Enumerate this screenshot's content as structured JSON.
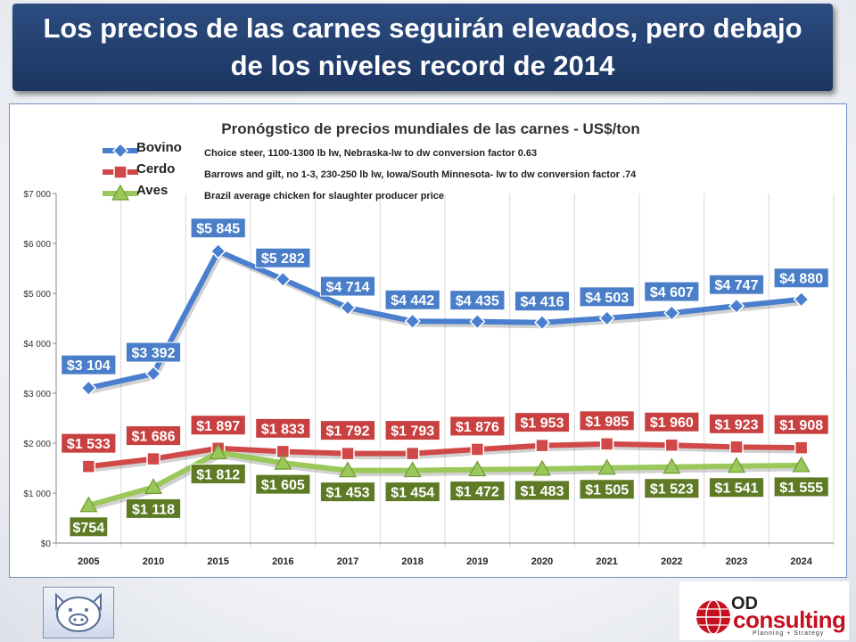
{
  "slide_title": {
    "line1": "Los precios de las carnes seguirán elevados, pero debajo",
    "line2": "de los niveles record de 2014"
  },
  "chart_data": {
    "type": "line",
    "title": "Pronógstico de precios  mundiales de las carnes - US$/ton",
    "categories": [
      "2005",
      "2010",
      "2015",
      "2016",
      "2017",
      "2018",
      "2019",
      "2020",
      "2021",
      "2022",
      "2023",
      "2024"
    ],
    "ylim": [
      0,
      7000
    ],
    "yticks": [
      0,
      1000,
      2000,
      3000,
      4000,
      5000,
      6000,
      7000
    ],
    "ytick_labels": [
      "$0",
      "$1 000",
      "$2 000",
      "$3 000",
      "$4 000",
      "$5 000",
      "$6 000",
      "$7 000"
    ],
    "grid": "vertical",
    "legend_position": "top-left",
    "series": [
      {
        "name": "Bovino",
        "description": "Choice steer, 1100-1300 lb lw, Nebraska-lw to dw conversion factor 0.63",
        "marker": "diamond",
        "color": "#4a7fcf",
        "label_bg": "#4a7ec8",
        "values": [
          3104,
          3392,
          5845,
          5282,
          4714,
          4442,
          4435,
          4416,
          4503,
          4607,
          4747,
          4880
        ],
        "labels": [
          "$3 104",
          "$3 392",
          "$5 845",
          "$5 282",
          "$4 714",
          "$4 442",
          "$4 435",
          "$4 416",
          "$4 503",
          "$4 607",
          "$4 747",
          "$4 880"
        ]
      },
      {
        "name": "Cerdo",
        "description": "Barrows and gilt, no 1-3, 230-250 lb lw, Iowa/South Minnesota- lw to dw conversion factor .74",
        "marker": "square",
        "color": "#d14848",
        "label_bg": "#c84040",
        "values": [
          1533,
          1686,
          1897,
          1833,
          1792,
          1793,
          1876,
          1953,
          1985,
          1960,
          1923,
          1908
        ],
        "labels": [
          "$1 533",
          "$1 686",
          "$1 897",
          "$1 833",
          "$1 792",
          "$1 793",
          "$1 876",
          "$1 953",
          "$1 985",
          "$1 960",
          "$1 923",
          "$1 908"
        ]
      },
      {
        "name": "Aves",
        "description": "Brazil average chicken for slaughter producer price",
        "marker": "triangle",
        "color": "#9bc85a",
        "label_bg": "#5e7a25",
        "values": [
          754,
          1118,
          1812,
          1605,
          1453,
          1454,
          1472,
          1483,
          1505,
          1523,
          1541,
          1555
        ],
        "labels": [
          "$754",
          "$1 118",
          "$1 812",
          "$1 605",
          "$1 453",
          "$1 454",
          "$1 472",
          "$1 483",
          "$1 505",
          "$1 523",
          "$1 541",
          "$1 555"
        ]
      }
    ]
  },
  "logos": {
    "left_icon": "pig-face-icon",
    "right_brand_od": "OD",
    "right_brand_name": "consulting",
    "right_brand_tagline": "Planning + Strategy"
  }
}
